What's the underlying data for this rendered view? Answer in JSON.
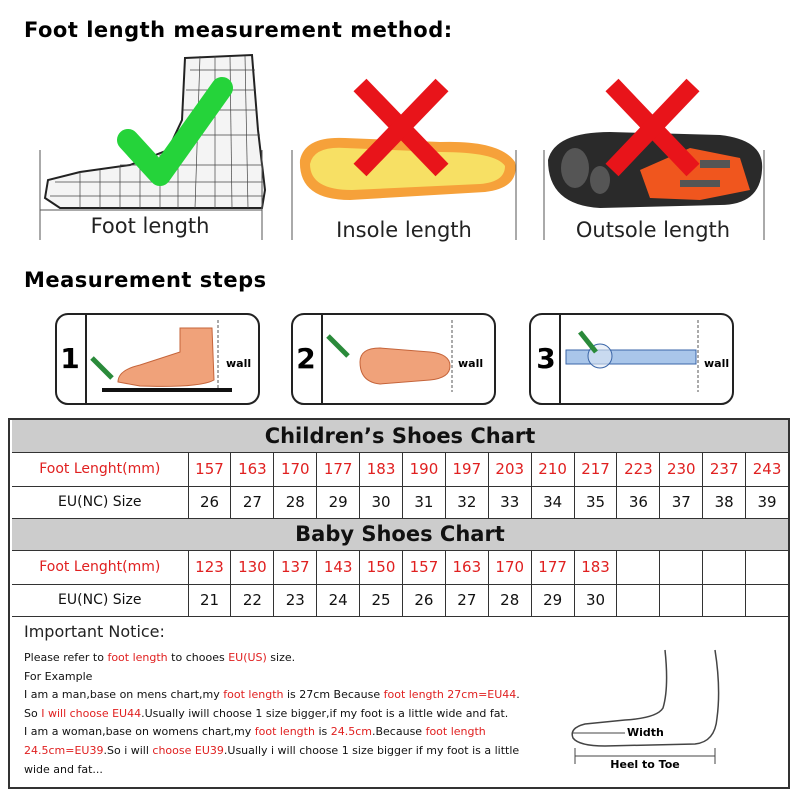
{
  "header": {
    "title": "Foot length measurement method:"
  },
  "methods": [
    {
      "label": "Foot length"
    },
    {
      "label": "Insole length"
    },
    {
      "label": "Outsole length"
    }
  ],
  "steps": {
    "title": "Measurement steps",
    "items": [
      {
        "number": "1",
        "wall": "wall"
      },
      {
        "number": "2",
        "wall": "wall"
      },
      {
        "number": "3",
        "wall": "wall"
      }
    ]
  },
  "children_chart": {
    "title": "Children’s Shoes Chart",
    "rows": [
      {
        "label": "Foot Lenght(mm)",
        "color": "#e02020",
        "values": [
          157,
          163,
          170,
          177,
          183,
          190,
          197,
          203,
          210,
          217,
          223,
          230,
          237,
          243
        ]
      },
      {
        "label": "EU(NC) Size",
        "color": "#111111",
        "values": [
          26,
          27,
          28,
          29,
          30,
          31,
          32,
          33,
          34,
          35,
          36,
          37,
          38,
          39
        ]
      }
    ]
  },
  "baby_chart": {
    "title": "Baby Shoes Chart",
    "rows": [
      {
        "label": "Foot Lenght(mm)",
        "color": "#e02020",
        "values": [
          123,
          130,
          137,
          143,
          150,
          157,
          163,
          170,
          177,
          183
        ]
      },
      {
        "label": "EU(NC) Size",
        "color": "#111111",
        "values": [
          21,
          22,
          23,
          24,
          25,
          26,
          27,
          28,
          29,
          30
        ]
      }
    ]
  },
  "notice": {
    "title": "Important Notice:",
    "highlight_color": "#e02020",
    "lines": [
      [
        "Please refer to ",
        {
          "text": "foot length"
        },
        " to chooes ",
        {
          "text": "EU(US)"
        },
        " size."
      ],
      [
        "For Example"
      ],
      [
        "I am a man,base on mens chart,my ",
        {
          "text": "foot length"
        },
        " is 27cm Because ",
        {
          "text": "foot length 27cm=EU44"
        },
        "."
      ],
      [
        "So ",
        {
          "text": "I will choose EU44"
        },
        ".Usually iwill choose 1 size bigger,if my foot is a little wide and fat."
      ],
      [
        "I am a woman,base on womens chart,my ",
        {
          "text": "foot length"
        },
        " is ",
        {
          "text": "24.5cm"
        },
        ".Because ",
        {
          "text": "foot length"
        }
      ],
      [
        {
          "text": "24.5cm=EU39"
        },
        ".So i will ",
        {
          "text": "choose EU39"
        },
        ".Usually i will choose 1 size bigger if my foot is a little"
      ],
      [
        "wide and fat..."
      ]
    ],
    "diagram": {
      "width": "Width",
      "length": "Heel to Toe"
    }
  }
}
